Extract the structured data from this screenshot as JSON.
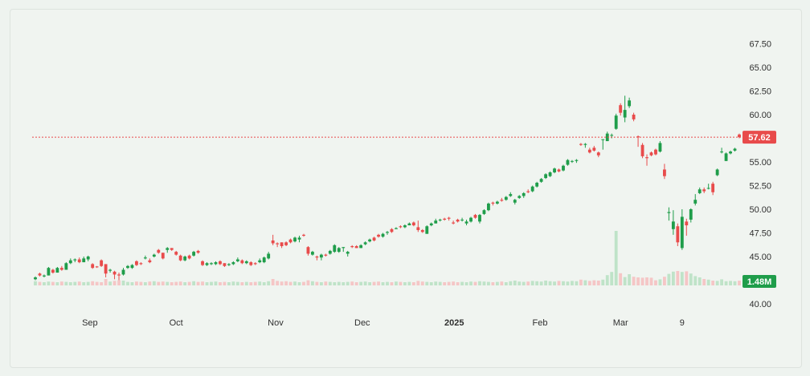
{
  "chart_data": {
    "type": "candlestick",
    "title": "",
    "xlabel": "",
    "ylabel": "",
    "ylim": [
      40,
      67.5
    ],
    "grid": false,
    "colors": {
      "up": "#1f9d4a",
      "down": "#e84b4b",
      "up_volume": "#bfe3c8",
      "down_volume": "#f5c6c6",
      "background": "#f0f4f0"
    },
    "y_ticks": [
      "40.00",
      "42.50",
      "45.00",
      "47.50",
      "50.00",
      "52.50",
      "55.00",
      "57.50",
      "60.00",
      "62.50",
      "65.00",
      "67.50"
    ],
    "y_tick_labels_shown": [
      "40.00",
      "45.00",
      "47.50",
      "50.00",
      "52.50",
      "55.00",
      "60.00",
      "62.50",
      "65.00",
      "67.50"
    ],
    "x_ticks": [
      {
        "label": "Sep",
        "index": 12.4
      },
      {
        "label": "Oct",
        "index": 32
      },
      {
        "label": "Nov",
        "index": 54.6
      },
      {
        "label": "Dec",
        "index": 74.3
      },
      {
        "label": "2025",
        "index": 95.2,
        "bold": true
      },
      {
        "label": "Feb",
        "index": 114.7
      },
      {
        "label": "Mar",
        "index": 133
      },
      {
        "label": "9",
        "index": 147
      }
    ],
    "last_price": {
      "value": 57.62,
      "label": "57.62",
      "color": "#e84b4b"
    },
    "last_volume": {
      "value": 1.48,
      "label": "1.48M",
      "color": "#1f9d4a"
    },
    "candles_ohlc": [
      [
        42.6,
        42.9,
        42.5,
        42.8
      ],
      [
        43.2,
        43.3,
        42.9,
        43.0
      ],
      [
        42.9,
        43.1,
        42.8,
        43.0
      ],
      [
        43.0,
        43.9,
        43.0,
        43.8
      ],
      [
        43.6,
        43.7,
        43.2,
        43.3
      ],
      [
        43.3,
        43.9,
        43.3,
        43.8
      ],
      [
        43.8,
        44.0,
        43.5,
        43.6
      ],
      [
        43.6,
        44.4,
        43.6,
        44.3
      ],
      [
        44.3,
        44.8,
        44.2,
        44.6
      ],
      [
        44.6,
        44.8,
        44.4,
        44.7
      ],
      [
        44.7,
        44.9,
        44.3,
        44.4
      ],
      [
        44.4,
        45.0,
        44.4,
        44.8
      ],
      [
        44.7,
        45.1,
        44.5,
        45.0
      ],
      [
        44.2,
        44.3,
        43.7,
        43.8
      ],
      [
        43.95,
        44.0,
        43.8,
        43.9
      ],
      [
        44.6,
        44.7,
        43.9,
        44.0
      ],
      [
        44.2,
        44.2,
        42.8,
        43.2
      ],
      [
        43.5,
        43.7,
        43.3,
        43.6
      ],
      [
        43.4,
        43.5,
        42.6,
        43.1
      ],
      [
        43.1,
        43.3,
        42.5,
        43.0
      ],
      [
        43.1,
        43.8,
        43.0,
        43.6
      ],
      [
        43.8,
        44.1,
        43.7,
        44.0
      ],
      [
        43.8,
        44.2,
        43.7,
        44.1
      ],
      [
        44.5,
        44.6,
        44.0,
        44.1
      ],
      [
        44.3,
        44.4,
        44.1,
        44.2
      ],
      [
        44.8,
        45.1,
        44.7,
        44.9
      ],
      [
        44.6,
        44.8,
        44.3,
        44.4
      ],
      [
        45.0,
        45.3,
        44.9,
        45.2
      ],
      [
        45.7,
        45.8,
        45.3,
        45.4
      ],
      [
        45.4,
        45.4,
        44.7,
        44.8
      ],
      [
        45.7,
        46.0,
        45.4,
        45.9
      ],
      [
        45.9,
        45.9,
        45.6,
        45.7
      ],
      [
        45.5,
        45.6,
        45.1,
        45.2
      ],
      [
        45.1,
        45.2,
        44.5,
        44.6
      ],
      [
        44.6,
        45.1,
        44.5,
        45.0
      ],
      [
        45.1,
        45.2,
        44.7,
        44.8
      ],
      [
        45.1,
        45.6,
        45.0,
        45.5
      ],
      [
        45.6,
        45.7,
        45.3,
        45.4
      ],
      [
        44.5,
        44.6,
        44.0,
        44.1
      ],
      [
        44.1,
        44.4,
        44.0,
        44.3
      ],
      [
        44.2,
        44.4,
        44.1,
        44.3
      ],
      [
        44.2,
        44.5,
        44.1,
        44.4
      ],
      [
        44.5,
        44.6,
        44.1,
        44.2
      ],
      [
        44.3,
        44.3,
        43.9,
        44.0
      ],
      [
        44.1,
        44.3,
        44.0,
        44.2
      ],
      [
        44.2,
        44.5,
        44.1,
        44.4
      ],
      [
        44.5,
        44.9,
        44.4,
        44.7
      ],
      [
        44.6,
        44.7,
        44.2,
        44.3
      ],
      [
        44.3,
        44.6,
        44.2,
        44.5
      ],
      [
        44.4,
        44.5,
        44.0,
        44.1
      ],
      [
        44.3,
        44.4,
        44.1,
        44.2
      ],
      [
        44.4,
        44.8,
        44.3,
        44.6
      ],
      [
        44.4,
        45.0,
        44.3,
        44.9
      ],
      [
        44.8,
        45.5,
        44.7,
        45.3
      ],
      [
        46.7,
        47.3,
        46.2,
        46.4
      ],
      [
        46.4,
        46.5,
        46.0,
        46.3
      ],
      [
        46.5,
        46.5,
        45.9,
        46.1
      ],
      [
        46.5,
        46.6,
        46.1,
        46.2
      ],
      [
        46.8,
        46.9,
        46.4,
        46.5
      ],
      [
        46.6,
        47.1,
        46.5,
        47.0
      ],
      [
        46.8,
        47.2,
        46.5,
        47.0
      ],
      [
        47.3,
        47.4,
        47.1,
        47.2
      ],
      [
        46.0,
        46.1,
        45.1,
        45.3
      ],
      [
        45.2,
        45.6,
        45.1,
        45.5
      ],
      [
        45.0,
        45.1,
        44.6,
        44.9
      ],
      [
        44.9,
        45.3,
        44.6,
        45.2
      ],
      [
        45.2,
        45.3,
        45.0,
        45.1
      ],
      [
        45.3,
        45.7,
        45.2,
        45.6
      ],
      [
        45.5,
        46.3,
        45.4,
        46.2
      ],
      [
        45.5,
        46.0,
        45.4,
        45.9
      ],
      [
        45.9,
        46.0,
        45.5,
        46.0
      ],
      [
        45.3,
        45.6,
        45.0,
        45.5
      ],
      [
        46.1,
        46.2,
        45.9,
        46.0
      ],
      [
        46.1,
        46.2,
        45.9,
        45.9
      ],
      [
        45.9,
        46.3,
        45.9,
        46.2
      ],
      [
        46.3,
        46.6,
        46.2,
        46.5
      ],
      [
        46.6,
        46.9,
        46.5,
        46.8
      ],
      [
        47.0,
        47.1,
        46.6,
        46.7
      ],
      [
        47.3,
        47.4,
        47.0,
        47.1
      ],
      [
        47.1,
        47.5,
        47.0,
        47.4
      ],
      [
        47.5,
        47.7,
        47.3,
        47.6
      ],
      [
        47.9,
        48.0,
        47.5,
        47.6
      ],
      [
        47.9,
        48.1,
        47.9,
        48.0
      ],
      [
        48.2,
        48.3,
        48.0,
        48.1
      ],
      [
        48.1,
        48.4,
        48.0,
        48.3
      ],
      [
        48.3,
        48.6,
        48.3,
        48.5
      ],
      [
        48.6,
        48.7,
        48.2,
        48.3
      ],
      [
        48.1,
        48.8,
        47.6,
        47.8
      ],
      [
        47.8,
        47.9,
        47.5,
        47.6
      ],
      [
        47.4,
        48.3,
        47.4,
        48.2
      ],
      [
        48.3,
        48.6,
        48.2,
        48.5
      ],
      [
        48.5,
        49.0,
        48.5,
        48.8
      ],
      [
        48.9,
        49.0,
        48.7,
        48.9
      ],
      [
        49.0,
        49.1,
        48.8,
        48.9
      ],
      [
        49.1,
        49.2,
        48.8,
        49.0
      ],
      [
        48.6,
        48.8,
        48.4,
        48.5
      ],
      [
        48.9,
        49.0,
        48.6,
        48.7
      ],
      [
        48.9,
        49.1,
        48.7,
        48.9
      ],
      [
        48.5,
        48.9,
        48.3,
        48.7
      ],
      [
        48.7,
        49.2,
        48.6,
        49.1
      ],
      [
        49.4,
        49.5,
        49.0,
        49.1
      ],
      [
        48.7,
        49.5,
        48.5,
        49.4
      ],
      [
        49.5,
        50.0,
        49.4,
        49.9
      ],
      [
        49.9,
        50.7,
        49.8,
        50.6
      ],
      [
        50.7,
        50.8,
        50.4,
        50.6
      ],
      [
        50.6,
        50.9,
        50.5,
        50.8
      ],
      [
        51.0,
        51.2,
        50.8,
        50.9
      ],
      [
        51.0,
        51.4,
        50.9,
        51.3
      ],
      [
        51.4,
        51.8,
        51.3,
        51.6
      ],
      [
        50.7,
        51.1,
        50.5,
        51.0
      ],
      [
        51.2,
        51.5,
        51.1,
        51.4
      ],
      [
        51.4,
        51.8,
        51.2,
        51.7
      ],
      [
        51.9,
        52.1,
        51.7,
        51.8
      ],
      [
        51.9,
        52.5,
        51.8,
        52.4
      ],
      [
        52.4,
        52.9,
        52.3,
        52.8
      ],
      [
        52.9,
        53.3,
        52.8,
        53.2
      ],
      [
        53.3,
        53.8,
        53.2,
        53.7
      ],
      [
        53.5,
        54.0,
        53.4,
        53.9
      ],
      [
        53.9,
        54.4,
        53.8,
        54.3
      ],
      [
        54.2,
        54.3,
        53.9,
        54.0
      ],
      [
        54.1,
        54.7,
        54.0,
        54.6
      ],
      [
        54.7,
        55.3,
        54.6,
        55.2
      ],
      [
        55.1,
        55.2,
        54.9,
        55.1
      ],
      [
        55.1,
        55.3,
        54.9,
        55.2
      ],
      [
        56.9,
        57.0,
        56.7,
        56.8
      ],
      [
        56.8,
        57.0,
        56.5,
        56.9
      ],
      [
        56.3,
        56.5,
        55.9,
        56.0
      ],
      [
        56.5,
        56.7,
        56.1,
        56.2
      ],
      [
        56.0,
        56.1,
        55.5,
        55.7
      ],
      [
        57.35,
        57.4,
        56.3,
        57.4
      ],
      [
        57.2,
        58.2,
        57.2,
        58.0
      ],
      [
        57.8,
        58.0,
        57.5,
        57.85
      ],
      [
        58.5,
        60.1,
        58.4,
        59.9
      ],
      [
        61.0,
        61.2,
        59.9,
        60.2
      ],
      [
        59.7,
        62.0,
        59.2,
        60.5
      ],
      [
        60.9,
        61.8,
        60.7,
        61.5
      ],
      [
        60.0,
        60.2,
        59.3,
        59.5
      ],
      [
        57.7,
        57.8,
        56.6,
        57.6
      ],
      [
        56.8,
        57.0,
        55.4,
        55.6
      ],
      [
        55.5,
        55.8,
        54.6,
        55.4
      ],
      [
        56.0,
        56.1,
        55.6,
        55.7
      ],
      [
        56.3,
        56.4,
        55.7,
        55.8
      ],
      [
        56.1,
        57.2,
        56.0,
        57.0
      ],
      [
        54.2,
        54.8,
        53.2,
        53.5
      ],
      [
        49.6,
        50.2,
        48.8,
        49.7
      ],
      [
        47.9,
        49.9,
        47.3,
        48.7
      ],
      [
        48.2,
        48.5,
        46.1,
        46.5
      ],
      [
        45.9,
        50.0,
        45.7,
        49.2
      ],
      [
        48.7,
        49.0,
        47.2,
        48.3
      ],
      [
        48.9,
        50.1,
        48.6,
        50.0
      ],
      [
        50.6,
        51.6,
        50.4,
        51.0
      ],
      [
        51.7,
        52.3,
        51.6,
        52.1
      ],
      [
        52.1,
        52.3,
        51.7,
        51.9
      ],
      [
        52.2,
        52.7,
        52.1,
        52.25
      ],
      [
        52.7,
        52.9,
        51.5,
        51.8
      ],
      [
        53.6,
        54.3,
        53.5,
        54.2
      ],
      [
        56.05,
        56.5,
        55.9,
        56.1
      ],
      [
        55.1,
        56.0,
        55.1,
        55.9
      ],
      [
        55.9,
        56.2,
        55.8,
        56.1
      ],
      [
        56.2,
        56.5,
        56.1,
        56.4
      ],
      [
        57.9,
        58.0,
        57.5,
        57.62
      ]
    ],
    "volume_millions": [
      1.3,
      1.1,
      1.0,
      1.2,
      1.1,
      1.0,
      1.2,
      1.1,
      1.0,
      1.1,
      1.2,
      1.0,
      1.1,
      1.3,
      1.1,
      1.0,
      2.0,
      1.2,
      1.4,
      1.6,
      1.5,
      1.1,
      1.0,
      1.2,
      1.1,
      1.0,
      1.2,
      1.3,
      1.1,
      1.2,
      1.1,
      1.0,
      1.1,
      1.2,
      1.0,
      1.1,
      1.3,
      1.1,
      1.2,
      1.0,
      1.1,
      1.2,
      1.0,
      1.1,
      1.0,
      1.2,
      1.1,
      1.0,
      1.1,
      1.0,
      1.1,
      1.2,
      1.0,
      1.3,
      2.0,
      1.4,
      1.2,
      1.3,
      1.1,
      1.2,
      1.0,
      1.1,
      1.6,
      1.3,
      1.1,
      1.0,
      1.2,
      1.1,
      1.0,
      1.1,
      1.0,
      1.1,
      1.2,
      1.0,
      1.1,
      1.2,
      1.0,
      1.1,
      1.2,
      1.0,
      1.1,
      1.0,
      1.2,
      1.1,
      1.0,
      1.1,
      1.0,
      1.4,
      1.2,
      1.1,
      1.0,
      1.2,
      1.1,
      1.0,
      1.1,
      1.2,
      1.0,
      1.1,
      1.0,
      1.2,
      1.1,
      1.3,
      1.2,
      1.1,
      1.0,
      1.1,
      1.2,
      1.0,
      1.3,
      1.5,
      1.2,
      1.1,
      1.2,
      1.4,
      1.3,
      1.2,
      1.5,
      1.3,
      1.2,
      1.4,
      1.3,
      1.2,
      1.4,
      1.3,
      1.8,
      1.6,
      1.4,
      1.6,
      1.5,
      1.8,
      3.2,
      4.2,
      17.0,
      3.8,
      2.6,
      3.5,
      2.7,
      2.5,
      2.4,
      2.5,
      2.4,
      1.6,
      1.9,
      2.7,
      3.6,
      4.3,
      4.5,
      4.2,
      4.4,
      3.7,
      2.9,
      2.5,
      2.0,
      1.8,
      1.5,
      1.4,
      1.9,
      1.3,
      1.4,
      1.3,
      1.48
    ]
  }
}
